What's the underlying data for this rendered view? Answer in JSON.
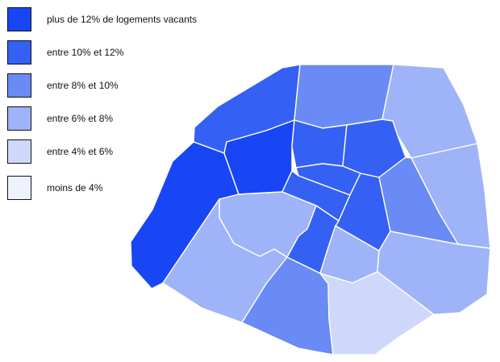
{
  "legend": {
    "items": [
      {
        "label": "plus de 12% de logements vacants",
        "color": "#1846f5"
      },
      {
        "label": "entre 10% et 12%",
        "color": "#3560f4"
      },
      {
        "label": "entre 8% et 10%",
        "color": "#6a8bf5"
      },
      {
        "label": "entre 6% et 8%",
        "color": "#9fb3f8"
      },
      {
        "label": "entre 4% et 6%",
        "color": "#cdd8fb"
      },
      {
        "label": "moins de 4%",
        "color": "#eef2fd"
      }
    ]
  },
  "map": {
    "regions": [
      {
        "name": "district-upper-left-arc",
        "class_index": 1
      },
      {
        "name": "district-upper-center",
        "class_index": 2
      },
      {
        "name": "district-upper-right",
        "class_index": 3
      },
      {
        "name": "district-west",
        "class_index": 0
      },
      {
        "name": "district-west-center",
        "class_index": 0
      },
      {
        "name": "district-center-north",
        "class_index": 1
      },
      {
        "name": "district-center-northeast",
        "class_index": 1
      },
      {
        "name": "district-right",
        "class_index": 3
      },
      {
        "name": "district-center-east",
        "class_index": 2
      },
      {
        "name": "district-center-1",
        "class_index": 1
      },
      {
        "name": "district-center-2",
        "class_index": 1
      },
      {
        "name": "district-center-3",
        "class_index": 1
      },
      {
        "name": "district-center-south",
        "class_index": 1
      },
      {
        "name": "district-south-center",
        "class_index": 3
      },
      {
        "name": "district-southwest-inner",
        "class_index": 3
      },
      {
        "name": "district-southwest",
        "class_index": 3
      },
      {
        "name": "district-south",
        "class_index": 2
      },
      {
        "name": "district-south-2",
        "class_index": 4
      },
      {
        "name": "district-southeast",
        "class_index": 3
      }
    ]
  }
}
